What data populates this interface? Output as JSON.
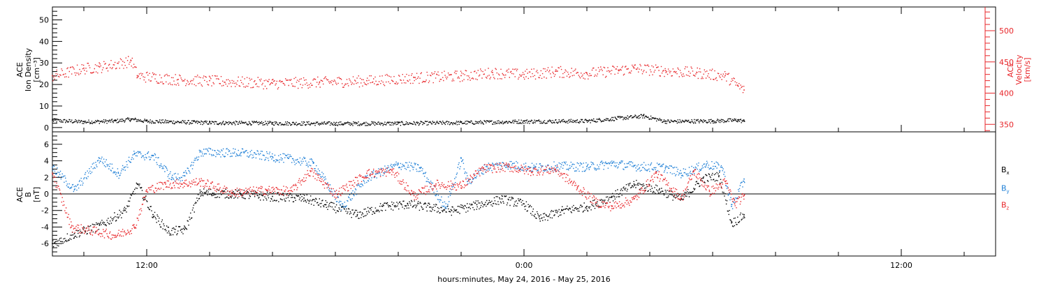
{
  "xaxis": {
    "label": "hours:minutes, May 24, 2016 - May 25, 2016",
    "range_hours": [
      -15,
      15
    ],
    "ticks": [
      {
        "h": -12,
        "label": "12:00"
      },
      {
        "h": 0,
        "label": "0:00"
      },
      {
        "h": 12,
        "label": "12:00"
      }
    ]
  },
  "colors": {
    "black": "#000000",
    "blue": "#1e7fd6",
    "red": "#e8262a"
  },
  "chart_data": [
    {
      "type": "scatter",
      "panel": "top",
      "ylabel_left": [
        "ACE",
        "Ion Density",
        "[cm⁻³]"
      ],
      "ylabel_right": [
        "ACE",
        "Velocity",
        "[km/s]"
      ],
      "ylim_left": [
        -2,
        56
      ],
      "ylim_right": [
        338,
        538
      ],
      "left_ticks": [
        0,
        10,
        20,
        30,
        40,
        50
      ],
      "right_ticks": [
        350,
        400,
        450,
        500
      ],
      "series": [
        {
          "name": "Ion Density",
          "axis": "left",
          "color": "#000000",
          "points": [
            [
              -15,
              3.5
            ],
            [
              -14,
              2.8
            ],
            [
              -13,
              3.2
            ],
            [
              -12.5,
              4.0
            ],
            [
              -12,
              3.1
            ],
            [
              -10,
              2.4
            ],
            [
              -8,
              2.2
            ],
            [
              -6,
              2.0
            ],
            [
              -4,
              2.1
            ],
            [
              -2,
              2.4
            ],
            [
              0,
              3.0
            ],
            [
              2,
              3.2
            ],
            [
              3.8,
              5.5
            ],
            [
              4.5,
              3.0
            ],
            [
              6,
              3.2
            ],
            [
              6.8,
              3.6
            ],
            [
              7,
              3.0
            ]
          ]
        },
        {
          "name": "Velocity",
          "axis": "right",
          "color": "#e8262a",
          "points": [
            [
              -15,
              428
            ],
            [
              -14,
              440
            ],
            [
              -13.5,
              442
            ],
            [
              -12.5,
              452
            ],
            [
              -12.3,
              428
            ],
            [
              -11,
              422
            ],
            [
              -10,
              420
            ],
            [
              -8,
              416
            ],
            [
              -6.5,
              418
            ],
            [
              -5,
              420
            ],
            [
              -3.5,
              425
            ],
            [
              -2,
              428
            ],
            [
              -1,
              433
            ],
            [
              0,
              430
            ],
            [
              1,
              435
            ],
            [
              2,
              432
            ],
            [
              3,
              437
            ],
            [
              3.5,
              440
            ],
            [
              4.5,
              436
            ],
            [
              5.5,
              433
            ],
            [
              6.4,
              428
            ],
            [
              6.8,
              412
            ],
            [
              7,
              405
            ]
          ]
        }
      ]
    },
    {
      "type": "scatter",
      "panel": "bottom",
      "ylabel_left": [
        "ACE",
        "B",
        "[nT]"
      ],
      "ylim": [
        -7.5,
        7.5
      ],
      "ticks": [
        -6,
        -4,
        -2,
        0,
        2,
        4,
        6
      ],
      "legend_placement": "right",
      "series": [
        {
          "name": "Bx",
          "label_main": "B",
          "label_sub": "x",
          "color": "#000000",
          "points": [
            [
              -15,
              -6.0
            ],
            [
              -14.3,
              -4.8
            ],
            [
              -13.5,
              -3.8
            ],
            [
              -12.7,
              -2.0
            ],
            [
              -12.3,
              1.2
            ],
            [
              -11.8,
              -2.5
            ],
            [
              -11.3,
              -4.5
            ],
            [
              -10.8,
              -4.3
            ],
            [
              -10.3,
              0.2
            ],
            [
              -9,
              0.0
            ],
            [
              -8,
              -0.3
            ],
            [
              -7,
              -0.5
            ],
            [
              -6.3,
              -1.3
            ],
            [
              -5.3,
              -2.5
            ],
            [
              -4.5,
              -1.5
            ],
            [
              -3.7,
              -1.2
            ],
            [
              -3,
              -1.6
            ],
            [
              -2.3,
              -2.0
            ],
            [
              -1.5,
              -1.3
            ],
            [
              -0.7,
              -0.6
            ],
            [
              0,
              -1.2
            ],
            [
              0.5,
              -3.0
            ],
            [
              1.2,
              -2.0
            ],
            [
              2,
              -1.5
            ],
            [
              2.8,
              -0.3
            ],
            [
              3.5,
              1.2
            ],
            [
              4.3,
              0.5
            ],
            [
              5,
              -0.6
            ],
            [
              5.7,
              1.9
            ],
            [
              6.2,
              2.2
            ],
            [
              6.6,
              -3.5
            ],
            [
              7,
              -2.5
            ]
          ]
        },
        {
          "name": "By",
          "label_main": "B",
          "label_sub": "y",
          "color": "#1e7fd6",
          "points": [
            [
              -15,
              3.2
            ],
            [
              -14.3,
              0.5
            ],
            [
              -13.5,
              4.3
            ],
            [
              -12.9,
              2.5
            ],
            [
              -12.4,
              4.8
            ],
            [
              -11.8,
              4.6
            ],
            [
              -11.2,
              2.0
            ],
            [
              -10.8,
              2.2
            ],
            [
              -10.3,
              5.1
            ],
            [
              -9,
              5.0
            ],
            [
              -8,
              4.5
            ],
            [
              -7.5,
              4.3
            ],
            [
              -6.7,
              3.7
            ],
            [
              -5.8,
              -1.5
            ],
            [
              -5,
              2.0
            ],
            [
              -4,
              3.6
            ],
            [
              -3.3,
              3.1
            ],
            [
              -2.5,
              -1.6
            ],
            [
              -2,
              4.3
            ],
            [
              -1.8,
              1.5
            ],
            [
              -1.2,
              3.3
            ],
            [
              -0.5,
              3.6
            ],
            [
              0.3,
              3.2
            ],
            [
              1,
              3.4
            ],
            [
              2,
              3.3
            ],
            [
              2.8,
              3.7
            ],
            [
              3.5,
              3.4
            ],
            [
              4.5,
              3.2
            ],
            [
              5,
              2.5
            ],
            [
              5.8,
              3.6
            ],
            [
              6.3,
              3.2
            ],
            [
              6.6,
              -1.5
            ],
            [
              7,
              1.8
            ]
          ]
        },
        {
          "name": "Bz",
          "label_main": "B",
          "label_sub": "z",
          "color": "#e8262a",
          "points": [
            [
              -15,
              2.5
            ],
            [
              -14.4,
              -4.0
            ],
            [
              -13.6,
              -4.5
            ],
            [
              -13,
              -5.0
            ],
            [
              -12.4,
              -4.0
            ],
            [
              -12,
              0.5
            ],
            [
              -11.4,
              1.2
            ],
            [
              -10.8,
              1.3
            ],
            [
              -10.3,
              1.5
            ],
            [
              -9.3,
              0.2
            ],
            [
              -8.2,
              0.5
            ],
            [
              -7.4,
              0.4
            ],
            [
              -6.8,
              2.8
            ],
            [
              -6,
              0.0
            ],
            [
              -5,
              2.5
            ],
            [
              -4.2,
              2.8
            ],
            [
              -3.5,
              -0.2
            ],
            [
              -2.8,
              1.2
            ],
            [
              -2,
              1.0
            ],
            [
              -1.3,
              3.1
            ],
            [
              -0.5,
              3.3
            ],
            [
              0.2,
              2.8
            ],
            [
              1,
              3.0
            ],
            [
              1.7,
              0.8
            ],
            [
              2.3,
              -1.0
            ],
            [
              2.8,
              -1.5
            ],
            [
              3.5,
              -0.6
            ],
            [
              4.2,
              2.5
            ],
            [
              5,
              -0.5
            ],
            [
              5.4,
              2.8
            ],
            [
              5.9,
              0.3
            ],
            [
              6.4,
              1.5
            ],
            [
              6.7,
              -1.2
            ],
            [
              7,
              -0.2
            ]
          ]
        }
      ]
    }
  ]
}
